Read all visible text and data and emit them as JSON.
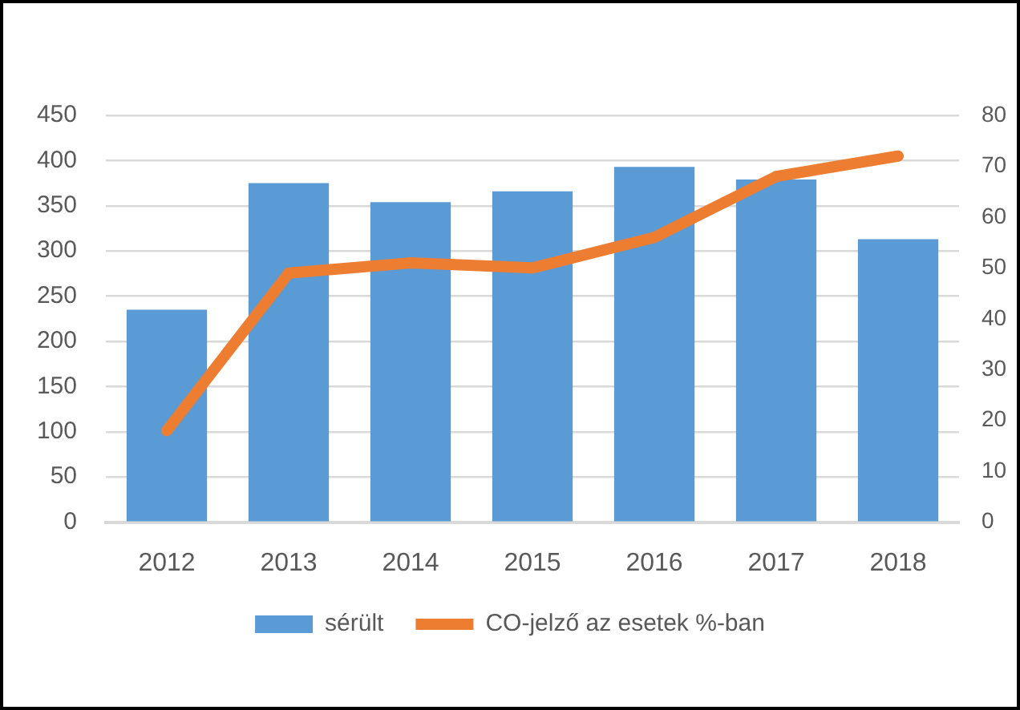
{
  "chart_data": {
    "type": "bar",
    "categories": [
      "2012",
      "2013",
      "2014",
      "2015",
      "2016",
      "2017",
      "2018"
    ],
    "series": [
      {
        "name": "sérült",
        "color": "#5b9bd5",
        "values": [
          235,
          375,
          354,
          366,
          393,
          379,
          313
        ]
      },
      {
        "name": "CO-jelző az esetek %-ban",
        "type": "line",
        "axis": "y2",
        "color": "#ed7d31",
        "values": [
          18,
          49,
          51,
          50,
          56,
          68,
          72
        ]
      }
    ],
    "ylim": [
      0,
      450
    ],
    "yticks": [
      0,
      50,
      100,
      150,
      200,
      250,
      300,
      350,
      400,
      450
    ],
    "y2lim": [
      0,
      80
    ],
    "y2ticks": [
      0,
      10,
      20,
      30,
      40,
      50,
      60,
      70,
      80
    ],
    "grid": "y",
    "legend": "bottom"
  }
}
